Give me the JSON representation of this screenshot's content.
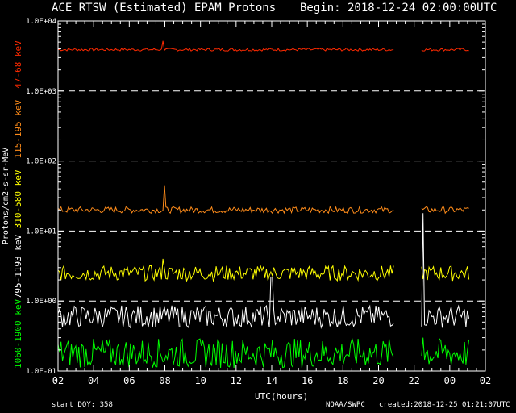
{
  "header": {
    "title": "ACE RTSW (Estimated) EPAM Protons",
    "begin": "Begin: 2018-12-24 02:00:00UTC"
  },
  "footer": {
    "start_doy": "start DOY: 358",
    "source": "NOAA/SWPC",
    "created": "created:2018-12-25 01:21:07UTC"
  },
  "chart_data": {
    "type": "line",
    "title": "ACE RTSW (Estimated) EPAM Protons",
    "xlabel": "UTC(hours)",
    "ylabel": "Protons/cm2-s-sr-MeV",
    "yscale": "log",
    "ylim": [
      0.1,
      10000
    ],
    "xlim_hours": [
      2,
      26
    ],
    "x_tick_labels": [
      "02",
      "04",
      "06",
      "08",
      "10",
      "12",
      "14",
      "16",
      "18",
      "20",
      "22",
      "00",
      "02"
    ],
    "y_tick_labels": [
      "1.0E-01",
      "1.0E+00",
      "1.0E+01",
      "1.0E+02",
      "1.0E+03",
      "1.0E+04"
    ],
    "y_tick_values": [
      0.1,
      1,
      10,
      100,
      1000,
      10000
    ],
    "grid": "dashed horizontal at each decade",
    "data_gap_hours": [
      20.9,
      22.4
    ],
    "series": [
      {
        "name": "47-68 keV",
        "color": "#ff2a00",
        "typical": 3900,
        "spikes": [
          {
            "x": 7.9,
            "y": 5200
          }
        ]
      },
      {
        "name": "115-195 keV",
        "color": "#ff8c1a",
        "typical": 20,
        "spikes": [
          {
            "x": 7.95,
            "y": 45
          }
        ]
      },
      {
        "name": "310-580 keV",
        "color": "#ffff00",
        "typical": 2.5,
        "spikes": [
          {
            "x": 7.9,
            "y": 4
          }
        ]
      },
      {
        "name": "795-1193 keV",
        "color": "#ffffff",
        "typical": 0.6,
        "spikes": [
          {
            "x": 14.0,
            "y": 2.2
          },
          {
            "x": 22.5,
            "y": 18
          }
        ]
      },
      {
        "name": "1060-1900 keV",
        "color": "#00ff00",
        "typical": 0.18,
        "spikes": [
          {
            "x": 22.5,
            "y": 0.3
          }
        ]
      }
    ]
  }
}
